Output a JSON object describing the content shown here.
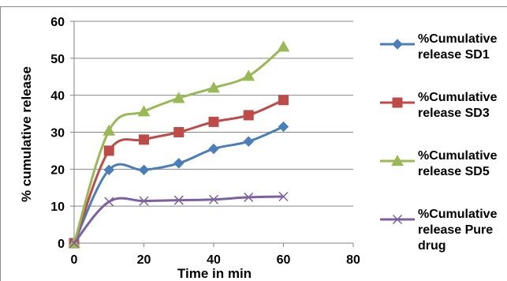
{
  "chart_data": {
    "type": "line",
    "title": "",
    "xlabel": "Time in min",
    "ylabel": "% cumulative release",
    "xlim": [
      0,
      80
    ],
    "ylim": [
      0,
      60
    ],
    "xticks": [
      "0",
      "20",
      "40",
      "60",
      "80"
    ],
    "yticks": [
      "0",
      "10",
      "20",
      "30",
      "40",
      "50",
      "60"
    ],
    "grid": "horizontal",
    "legend_position": "right",
    "x": [
      0,
      10,
      20,
      30,
      40,
      50,
      60
    ],
    "series": [
      {
        "name": "%Cumulative release SD1",
        "values": [
          0,
          19.8,
          19.8,
          21.6,
          25.5,
          27.5,
          31.5
        ],
        "color": "#4a7ebb",
        "marker": "diamond"
      },
      {
        "name": "%Cumulative release SD3",
        "values": [
          0,
          25,
          28,
          30,
          32.8,
          34.6,
          38.7
        ],
        "color": "#be4b48",
        "marker": "square"
      },
      {
        "name": "%Cumulative release SD5",
        "values": [
          0,
          30.4,
          35.6,
          39.2,
          42,
          45.2,
          53.1
        ],
        "color": "#98b954",
        "marker": "triangle"
      },
      {
        "name": "%Cumulative release Pure drug",
        "values": [
          0,
          11.2,
          11.4,
          11.6,
          11.8,
          12.4,
          12.6
        ],
        "color": "#7d60a0",
        "marker": "x"
      }
    ]
  }
}
